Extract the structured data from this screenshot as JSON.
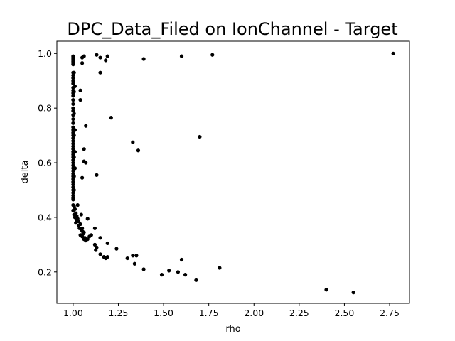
{
  "chart_data": {
    "type": "scatter",
    "title": "DPC_Data_Filed on IonChannel - Target",
    "xlabel": "rho",
    "ylabel": "delta",
    "xlim": [
      0.91,
      2.86
    ],
    "ylim": [
      0.085,
      1.045
    ],
    "xticks": [
      "1.00",
      "1.25",
      "1.50",
      "1.75",
      "2.00",
      "2.25",
      "2.50",
      "2.75"
    ],
    "yticks": [
      "0.2",
      "0.4",
      "0.6",
      "0.8",
      "1.0"
    ],
    "grid": false,
    "marker_color": "#000000",
    "points": [
      [
        1.0,
        0.99
      ],
      [
        1.0,
        0.985
      ],
      [
        1.0,
        0.98
      ],
      [
        1.0,
        0.975
      ],
      [
        1.0,
        0.97
      ],
      [
        1.0,
        0.965
      ],
      [
        1.0,
        0.96
      ],
      [
        1.0,
        0.93
      ],
      [
        1.0,
        0.92
      ],
      [
        1.0,
        0.91
      ],
      [
        1.0,
        0.9
      ],
      [
        1.0,
        0.89
      ],
      [
        1.0,
        0.875
      ],
      [
        1.0,
        0.865
      ],
      [
        1.0,
        0.855
      ],
      [
        1.0,
        0.845
      ],
      [
        1.0,
        0.83
      ],
      [
        1.0,
        0.815
      ],
      [
        1.0,
        0.8
      ],
      [
        1.0,
        0.79
      ],
      [
        1.0,
        0.775
      ],
      [
        1.0,
        0.76
      ],
      [
        1.0,
        0.745
      ],
      [
        1.0,
        0.73
      ],
      [
        1.0,
        0.72
      ],
      [
        1.0,
        0.71
      ],
      [
        1.0,
        0.7
      ],
      [
        1.0,
        0.69
      ],
      [
        1.0,
        0.68
      ],
      [
        1.0,
        0.67
      ],
      [
        1.0,
        0.66
      ],
      [
        1.0,
        0.65
      ],
      [
        1.0,
        0.64
      ],
      [
        1.0,
        0.63
      ],
      [
        1.0,
        0.62
      ],
      [
        1.0,
        0.61
      ],
      [
        1.0,
        0.6
      ],
      [
        1.0,
        0.59
      ],
      [
        1.0,
        0.58
      ],
      [
        1.0,
        0.57
      ],
      [
        1.0,
        0.56
      ],
      [
        1.0,
        0.55
      ],
      [
        1.0,
        0.54
      ],
      [
        1.0,
        0.53
      ],
      [
        1.0,
        0.52
      ],
      [
        1.0,
        0.51
      ],
      [
        1.0,
        0.5
      ],
      [
        1.0,
        0.49
      ],
      [
        1.0,
        0.48
      ],
      [
        1.0,
        0.47
      ],
      [
        1.0,
        0.465
      ],
      [
        1.005,
        0.93
      ],
      [
        1.005,
        0.86
      ],
      [
        1.005,
        0.78
      ],
      [
        1.005,
        0.7
      ],
      [
        1.005,
        0.62
      ],
      [
        1.005,
        0.55
      ],
      [
        1.005,
        0.5
      ],
      [
        1.01,
        0.88
      ],
      [
        1.01,
        0.72
      ],
      [
        1.01,
        0.64
      ],
      [
        1.01,
        0.58
      ],
      [
        1.0,
        0.445
      ],
      [
        1.005,
        0.44
      ],
      [
        1.01,
        0.43
      ],
      [
        1.0,
        0.425
      ],
      [
        1.015,
        0.415
      ],
      [
        1.005,
        0.41
      ],
      [
        1.02,
        0.405
      ],
      [
        1.01,
        0.4
      ],
      [
        1.025,
        0.395
      ],
      [
        1.02,
        0.39
      ],
      [
        1.03,
        0.385
      ],
      [
        1.015,
        0.38
      ],
      [
        1.04,
        0.375
      ],
      [
        1.03,
        0.37
      ],
      [
        1.035,
        0.36
      ],
      [
        1.045,
        0.355
      ],
      [
        1.05,
        0.35
      ],
      [
        1.06,
        0.345
      ],
      [
        1.055,
        0.34
      ],
      [
        1.04,
        0.335
      ],
      [
        1.05,
        0.33
      ],
      [
        1.065,
        0.325
      ],
      [
        1.06,
        0.32
      ],
      [
        1.07,
        0.315
      ],
      [
        1.08,
        0.32
      ],
      [
        1.09,
        0.33
      ],
      [
        1.1,
        0.335
      ],
      [
        1.045,
        0.41
      ],
      [
        1.025,
        0.445
      ],
      [
        1.05,
        0.36
      ],
      [
        1.12,
        0.36
      ],
      [
        1.12,
        0.3
      ],
      [
        1.13,
        0.29
      ],
      [
        1.125,
        0.28
      ],
      [
        1.08,
        0.395
      ],
      [
        1.15,
        0.325
      ],
      [
        1.15,
        0.265
      ],
      [
        1.17,
        0.255
      ],
      [
        1.18,
        0.25
      ],
      [
        1.19,
        0.255
      ],
      [
        1.19,
        0.305
      ],
      [
        1.24,
        0.285
      ],
      [
        1.3,
        0.25
      ],
      [
        1.33,
        0.26
      ],
      [
        1.35,
        0.26
      ],
      [
        1.34,
        0.23
      ],
      [
        1.39,
        0.21
      ],
      [
        1.49,
        0.19
      ],
      [
        1.53,
        0.205
      ],
      [
        1.58,
        0.2
      ],
      [
        1.6,
        0.245
      ],
      [
        1.62,
        0.19
      ],
      [
        1.68,
        0.17
      ],
      [
        1.81,
        0.215
      ],
      [
        2.4,
        0.135
      ],
      [
        2.55,
        0.125
      ],
      [
        1.13,
        0.555
      ],
      [
        1.05,
        0.545
      ],
      [
        1.06,
        0.605
      ],
      [
        1.07,
        0.6
      ],
      [
        1.06,
        0.65
      ],
      [
        1.21,
        0.765
      ],
      [
        1.07,
        0.735
      ],
      [
        1.04,
        0.865
      ],
      [
        1.04,
        0.83
      ],
      [
        1.33,
        0.675
      ],
      [
        1.36,
        0.645
      ],
      [
        1.7,
        0.695
      ],
      [
        1.05,
        0.965
      ],
      [
        1.05,
        0.985
      ],
      [
        1.06,
        0.99
      ],
      [
        1.13,
        0.995
      ],
      [
        1.15,
        0.93
      ],
      [
        1.15,
        0.985
      ],
      [
        1.18,
        0.975
      ],
      [
        1.19,
        0.99
      ],
      [
        1.39,
        0.98
      ],
      [
        1.6,
        0.99
      ],
      [
        1.77,
        0.995
      ],
      [
        2.77,
        1.0
      ]
    ]
  }
}
